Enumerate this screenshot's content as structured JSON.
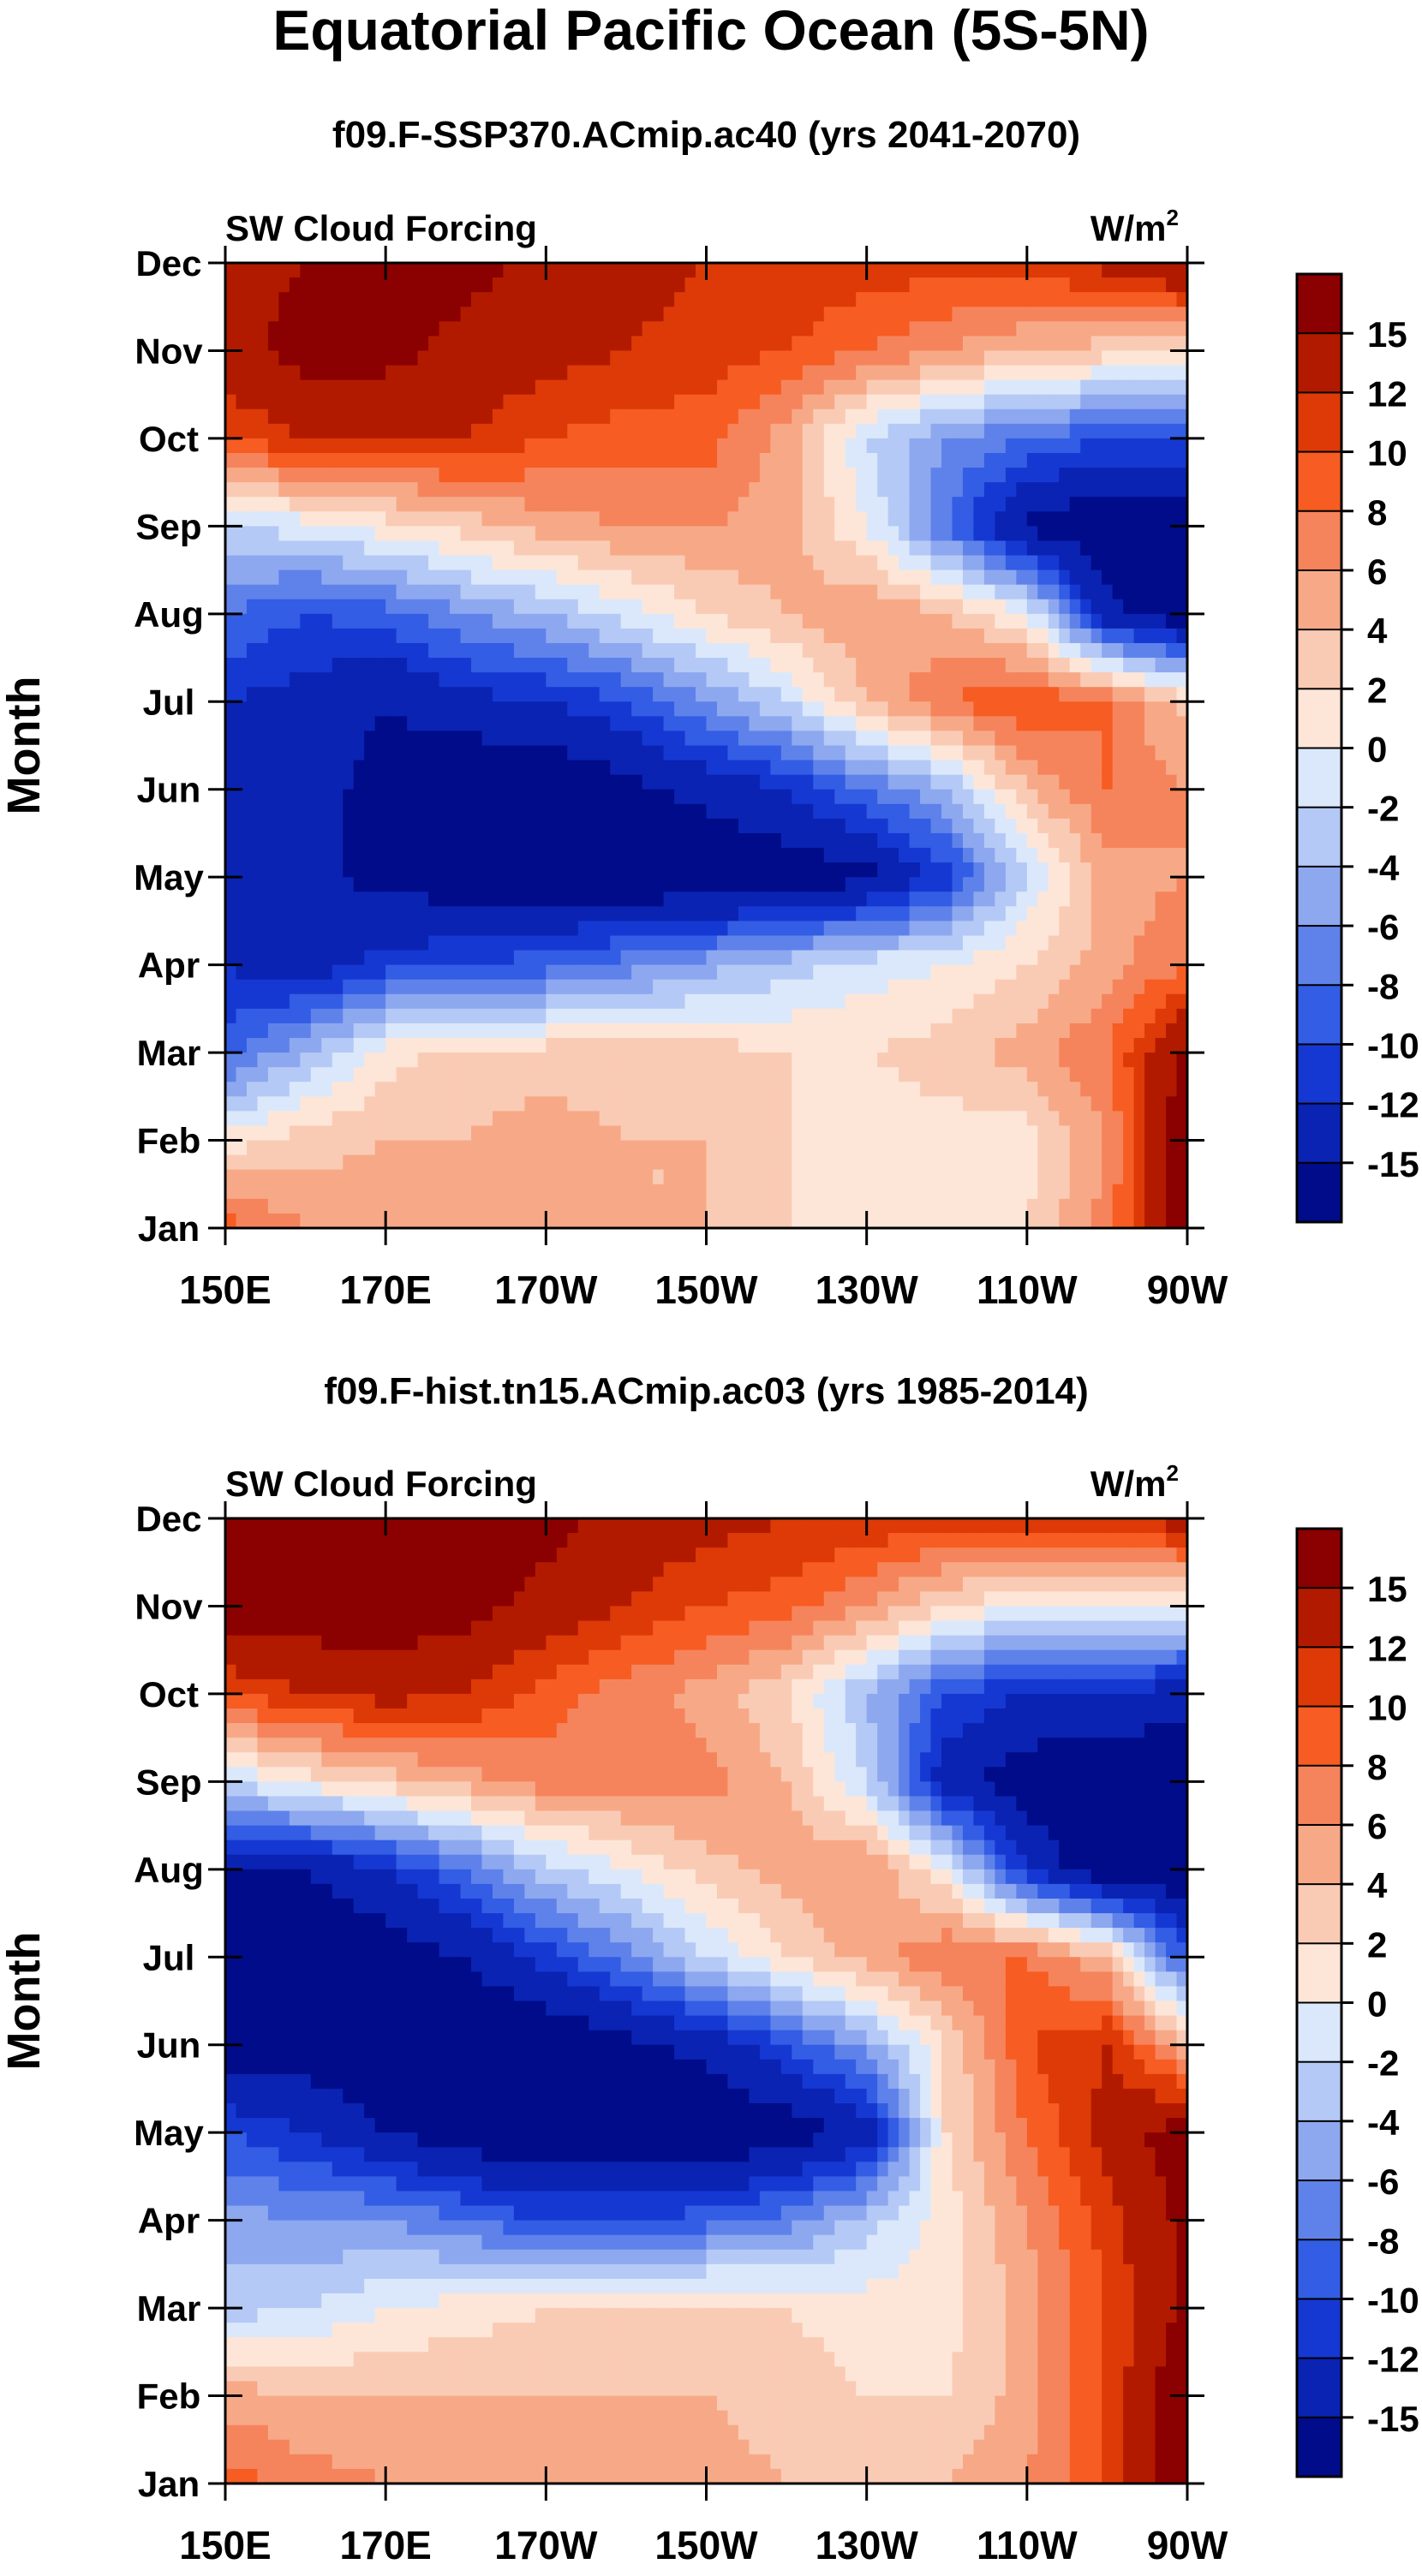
{
  "figure": {
    "title": "Equatorial Pacific Ocean (5S-5N)"
  },
  "color_levels": {
    "labels": [
      "15",
      "12",
      "10",
      "8",
      "6",
      "4",
      "2",
      "0",
      "-2",
      "-4",
      "-6",
      "-8",
      "-10",
      "-12",
      "-15"
    ],
    "bins": [
      {
        "upper": "15",
        "color": "#8b0000"
      },
      {
        "upper": "12",
        "color": "#b21a00"
      },
      {
        "upper": "10",
        "color": "#dd3a07"
      },
      {
        "upper": "8",
        "color": "#f75c22"
      },
      {
        "upper": "6",
        "color": "#f5845c"
      },
      {
        "upper": "4",
        "color": "#f7a987"
      },
      {
        "upper": "2",
        "color": "#facbb4"
      },
      {
        "upper": "0",
        "color": "#fde6d8"
      },
      {
        "upper": "-2",
        "color": "#dbe8fb"
      },
      {
        "upper": "-4",
        "color": "#b4c9f5"
      },
      {
        "upper": "-6",
        "color": "#8da8ef"
      },
      {
        "upper": "-8",
        "color": "#5f82ea"
      },
      {
        "upper": "-10",
        "color": "#325de4"
      },
      {
        "upper": "-12",
        "color": "#1638d2"
      },
      {
        "upper": "-15",
        "color": "#0a23b2"
      },
      {
        "upper": "min",
        "color": "#000c8a"
      }
    ]
  },
  "chart_data": [
    {
      "type": "heatmap",
      "title": "f09.F-SSP370.ACmip.ac40 (yrs 2041-2070)",
      "left_label": "SW Cloud Forcing",
      "units_base": "W/m",
      "units_exp": "2",
      "ylabel": "Month",
      "xlabel": "",
      "x_tick_labels": [
        "150E",
        "170E",
        "170W",
        "150W",
        "130W",
        "110W",
        "90W"
      ],
      "x_ticks_lon": [
        150,
        170,
        190,
        210,
        230,
        250,
        270
      ],
      "y_tick_labels": [
        "Jan",
        "Feb",
        "Mar",
        "Apr",
        "May",
        "Jun",
        "Jul",
        "Aug",
        "Sep",
        "Oct",
        "Nov",
        "Dec"
      ],
      "xlim": [
        150,
        270
      ],
      "ylim": [
        1,
        12
      ],
      "z_levels": [
        -15,
        -12,
        -10,
        -8,
        -6,
        -4,
        -2,
        0,
        2,
        4,
        6,
        8,
        10,
        12,
        15
      ],
      "x": [
        150,
        160,
        170,
        180,
        190,
        200,
        210,
        220,
        230,
        240,
        250,
        260,
        270
      ],
      "y": [
        1,
        2,
        3,
        4,
        5,
        6,
        7,
        8,
        9,
        10,
        11,
        12
      ],
      "z": [
        [
          9,
          6,
          5,
          5,
          5,
          4,
          4,
          2,
          2,
          2,
          2,
          7,
          18
        ],
        [
          1,
          3,
          4,
          4,
          5,
          4,
          4,
          2,
          1,
          1,
          1,
          6,
          18
        ],
        [
          -9,
          -4,
          1,
          3,
          3,
          3,
          3,
          2,
          2,
          3,
          5,
          8,
          16
        ],
        [
          -12,
          -14,
          -11,
          -10,
          -9,
          -7,
          -5,
          -3,
          -1,
          0,
          2,
          5,
          8
        ],
        [
          -12,
          -14,
          -16,
          -17,
          -17,
          -18,
          -18,
          -17,
          -16,
          -11,
          -2,
          5,
          6
        ],
        [
          -12,
          -14,
          -16,
          -18,
          -18,
          -16,
          -14,
          -12,
          -8,
          -4,
          4,
          8,
          6
        ],
        [
          -12,
          -13,
          -15,
          -13,
          -12,
          -10,
          -6,
          -2,
          4,
          8,
          10,
          8,
          3
        ],
        [
          -8,
          -10,
          -9,
          -6,
          -4,
          -1,
          2,
          4,
          6,
          4,
          0,
          -14,
          -18
        ],
        [
          -2,
          -1,
          1,
          3,
          5,
          6,
          6,
          5,
          0,
          -8,
          -16,
          -18,
          -18
        ],
        [
          10,
          12,
          12,
          12,
          10,
          9,
          9,
          5,
          -2,
          -6,
          -8,
          -10,
          -10
        ],
        [
          14,
          16,
          16,
          14,
          13,
          12,
          11,
          10,
          8,
          6,
          4,
          3,
          2
        ],
        [
          14,
          15,
          17,
          16,
          14,
          13,
          12,
          12,
          11,
          11,
          11,
          13,
          16
        ]
      ]
    },
    {
      "type": "heatmap",
      "title": "f09.F-hist.tn15.ACmip.ac03 (yrs 1985-2014)",
      "left_label": "SW Cloud Forcing",
      "units_base": "W/m",
      "units_exp": "2",
      "ylabel": "Month",
      "xlabel": "",
      "x_tick_labels": [
        "150E",
        "170E",
        "170W",
        "150W",
        "130W",
        "110W",
        "90W"
      ],
      "x_ticks_lon": [
        150,
        170,
        190,
        210,
        230,
        250,
        270
      ],
      "y_tick_labels": [
        "Jan",
        "Feb",
        "Mar",
        "Apr",
        "May",
        "Jun",
        "Jul",
        "Aug",
        "Sep",
        "Oct",
        "Nov",
        "Dec"
      ],
      "xlim": [
        150,
        270
      ],
      "ylim": [
        1,
        12
      ],
      "z_levels": [
        -15,
        -12,
        -10,
        -8,
        -6,
        -4,
        -2,
        0,
        2,
        4,
        6,
        8,
        10,
        12,
        15
      ],
      "x": [
        150,
        160,
        170,
        180,
        190,
        200,
        210,
        220,
        230,
        240,
        250,
        260,
        270
      ],
      "y": [
        1,
        2,
        3,
        4,
        5,
        6,
        7,
        8,
        9,
        10,
        11,
        12
      ],
      "z": [
        [
          9,
          7,
          6,
          6,
          6,
          5,
          5,
          4,
          3,
          4,
          6,
          10,
          18
        ],
        [
          5,
          4,
          4,
          4,
          4,
          4,
          4,
          3,
          2,
          2,
          5,
          10,
          18
        ],
        [
          -3,
          -2,
          0,
          1,
          2,
          2,
          3,
          2,
          1,
          1,
          5,
          10,
          16
        ],
        [
          -5,
          -6,
          -6,
          -8,
          -10,
          -10,
          -9,
          -7,
          -3,
          1,
          6,
          11,
          16
        ],
        [
          -10,
          -12,
          -15,
          -17,
          -18,
          -18,
          -18,
          -17,
          -14,
          2,
          8,
          13,
          17
        ],
        [
          -17,
          -17,
          -18,
          -18,
          -18,
          -16,
          -14,
          -10,
          -5,
          2,
          10,
          12,
          4
        ],
        [
          -17,
          -18,
          -17,
          -15,
          -11,
          -7,
          -2,
          2,
          5,
          8,
          8,
          4,
          -10
        ],
        [
          -15,
          -15,
          -12,
          -8,
          -3,
          0,
          3,
          5,
          6,
          0,
          -12,
          -18,
          -18
        ],
        [
          -2,
          1,
          3,
          5,
          7,
          7,
          7,
          4,
          -2,
          -14,
          -17,
          -18,
          -18
        ],
        [
          10,
          12,
          13,
          12,
          9,
          7,
          5,
          2,
          -4,
          -10,
          -12,
          -12,
          -14
        ],
        [
          17,
          17,
          17,
          16,
          14,
          12,
          10,
          9,
          6,
          2,
          0,
          0,
          0
        ],
        [
          16,
          17,
          17,
          17,
          16,
          14,
          13,
          12,
          12,
          11,
          11,
          11,
          14
        ]
      ]
    }
  ]
}
